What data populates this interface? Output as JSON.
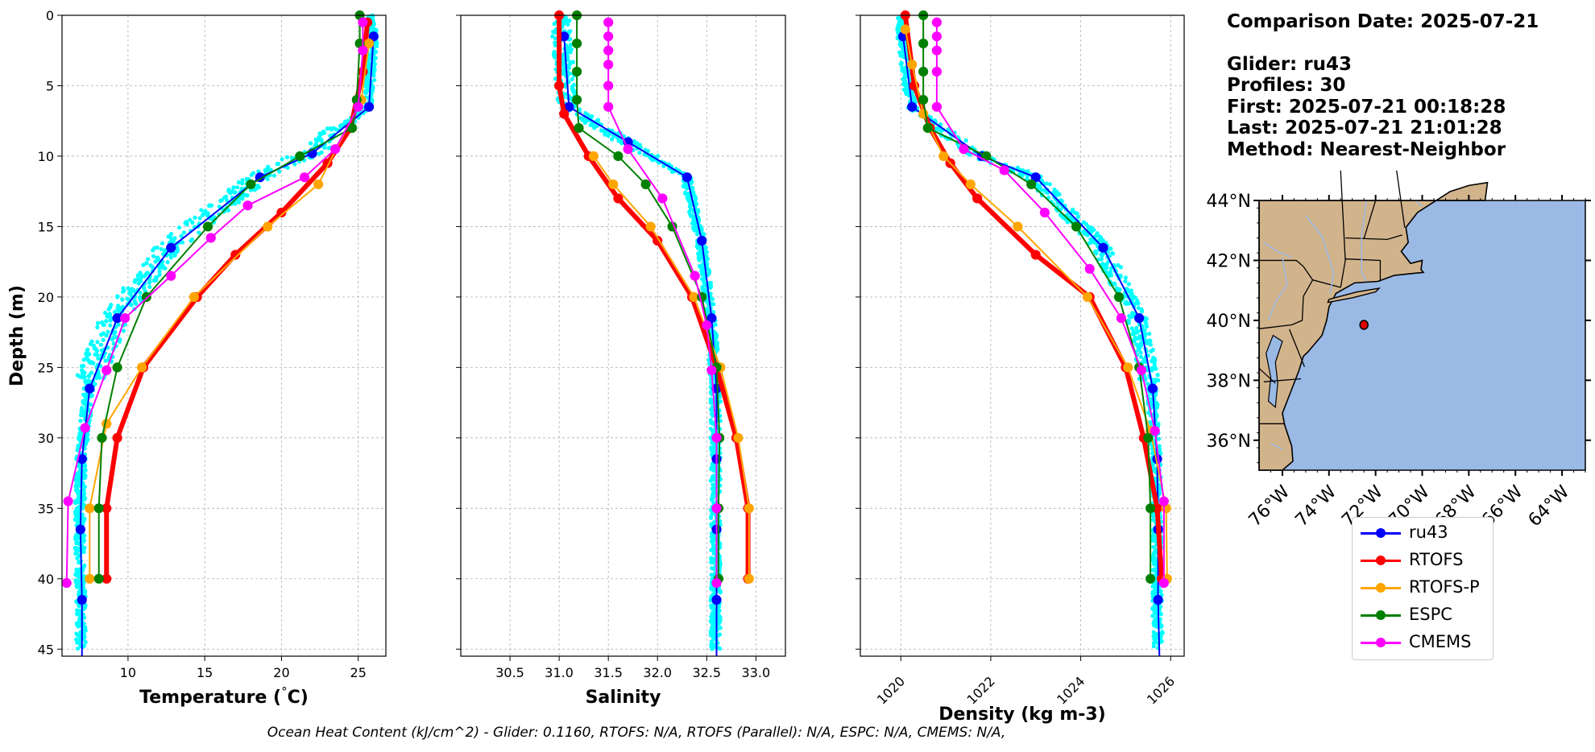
{
  "info": {
    "comparison_date": "Comparison Date: 2025-07-21",
    "glider": "Glider: ru43",
    "profiles": "Profiles: 30",
    "first": "First: 2025-07-21 00:18:28",
    "last": "Last: 2025-07-21 21:01:28",
    "method": "Method: Nearest-Neighbor"
  },
  "footer": "Ocean Heat Content (kJ/cm^2) - Glider: 0.1160,  RTOFS: N/A,  RTOFS (Parallel): N/A,  ESPC: N/A,  CMEMS: N/A,",
  "legend": [
    {
      "label": "ru43",
      "color": "#0000ff"
    },
    {
      "label": "RTOFS",
      "color": "#ff0000"
    },
    {
      "label": "RTOFS-P",
      "color": "#ffa500"
    },
    {
      "label": "ESPC",
      "color": "#008000"
    },
    {
      "label": "CMEMS",
      "color": "#ff00ff"
    }
  ],
  "map": {
    "lat_ticks": [
      "44°N",
      "42°N",
      "40°N",
      "38°N",
      "36°N"
    ],
    "lon_ticks": [
      "76°W",
      "74°W",
      "72°W",
      "70°W",
      "68°W",
      "66°W",
      "64°W"
    ],
    "land_color": "#d2b48c",
    "ocean_color": "#9ab9e5",
    "glider_position": [
      -72.5,
      39.85
    ]
  },
  "chart_data": [
    {
      "type": "line",
      "xlabel": "Temperature (°C)",
      "ylabel": "Depth (m)",
      "xlim": [
        5.7,
        26.8
      ],
      "ylim": [
        45.5,
        0
      ],
      "xticks": [
        10,
        15,
        20,
        25
      ],
      "yticks": [
        0,
        5,
        10,
        15,
        20,
        25,
        30,
        35,
        40,
        45
      ],
      "grid": true,
      "scatter_color": "#00ffff",
      "series": [
        {
          "name": "ru43",
          "color": "#0000ff",
          "width": 2,
          "marker": 7,
          "points": [
            [
              26,
              1.5
            ],
            [
              25.7,
              6.5
            ],
            [
              22,
              9.8
            ],
            [
              18.6,
              11.5
            ],
            [
              12.8,
              16.5
            ],
            [
              9.3,
              21.5
            ],
            [
              7.5,
              26.5
            ],
            [
              7,
              31.5
            ],
            [
              6.9,
              36.5
            ],
            [
              7,
              41.5
            ],
            [
              7,
              45.5
            ]
          ]
        },
        {
          "name": "RTOFS",
          "color": "#ff0000",
          "width": 6,
          "marker": 7,
          "points": [
            [
              25.6,
              0.5
            ],
            [
              25.3,
              4
            ],
            [
              24.5,
              8
            ],
            [
              23,
              10.5
            ],
            [
              20,
              14
            ],
            [
              17,
              17
            ],
            [
              14.5,
              20
            ],
            [
              11,
              25
            ],
            [
              9.3,
              30
            ],
            [
              8.6,
              35
            ],
            [
              8.6,
              40
            ]
          ]
        },
        {
          "name": "RTOFS-P",
          "color": "#ffa500",
          "width": 2,
          "marker": 7,
          "points": [
            [
              25.7,
              2
            ],
            [
              25.2,
              6
            ],
            [
              22.4,
              12
            ],
            [
              19.1,
              15
            ],
            [
              14.3,
              20
            ],
            [
              10.9,
              25
            ],
            [
              8.6,
              29
            ],
            [
              7.5,
              35
            ],
            [
              7.5,
              40
            ]
          ]
        },
        {
          "name": "ESPC",
          "color": "#008000",
          "width": 2,
          "marker": 7,
          "points": [
            [
              25.1,
              0
            ],
            [
              25.1,
              2
            ],
            [
              24.9,
              6
            ],
            [
              24.6,
              8
            ],
            [
              21.2,
              10
            ],
            [
              18,
              12
            ],
            [
              15.2,
              15
            ],
            [
              11.2,
              20
            ],
            [
              9.3,
              25
            ],
            [
              8.3,
              30
            ],
            [
              8.1,
              35
            ],
            [
              8.1,
              40
            ]
          ]
        },
        {
          "name": "CMEMS",
          "color": "#ff00ff",
          "width": 2,
          "marker": 7,
          "points": [
            [
              25.3,
              0.5
            ],
            [
              25.3,
              2.5
            ],
            [
              25,
              6.5
            ],
            [
              23.5,
              9.5
            ],
            [
              21.5,
              11.5
            ],
            [
              17.8,
              13.5
            ],
            [
              15.4,
              15.8
            ],
            [
              12.8,
              18.5
            ],
            [
              9.8,
              21.5
            ],
            [
              8.6,
              25.2
            ],
            [
              7.2,
              29.3
            ],
            [
              6.1,
              34.5
            ],
            [
              6,
              40.3
            ]
          ]
        }
      ]
    },
    {
      "type": "line",
      "xlabel": "Salinity",
      "ylabel": "",
      "xlim": [
        30.0,
        33.3
      ],
      "ylim": [
        45.5,
        0
      ],
      "xticks": [
        30.5,
        31.0,
        31.5,
        32.0,
        32.5,
        33.0
      ],
      "yticks": [
        0,
        5,
        10,
        15,
        20,
        25,
        30,
        35,
        40,
        45
      ],
      "grid": true,
      "scatter_color": "#00ffff",
      "series": [
        {
          "name": "ru43",
          "color": "#0000ff",
          "width": 2,
          "marker": 7,
          "points": [
            [
              31.05,
              1.5
            ],
            [
              31.1,
              6.5
            ],
            [
              31.7,
              9
            ],
            [
              32.3,
              11.5
            ],
            [
              32.45,
              16
            ],
            [
              32.55,
              21.5
            ],
            [
              32.6,
              26.5
            ],
            [
              32.6,
              31.5
            ],
            [
              32.6,
              36.5
            ],
            [
              32.6,
              41.5
            ],
            [
              32.6,
              45.5
            ]
          ]
        },
        {
          "name": "RTOFS",
          "color": "#ff0000",
          "width": 6,
          "marker": 7,
          "points": [
            [
              31.0,
              0
            ],
            [
              31.0,
              5
            ],
            [
              31.05,
              7
            ],
            [
              31.3,
              10
            ],
            [
              31.6,
              13
            ],
            [
              32.0,
              16
            ],
            [
              32.35,
              20
            ],
            [
              32.6,
              25
            ],
            [
              32.8,
              30
            ],
            [
              32.92,
              35
            ],
            [
              32.92,
              40
            ]
          ]
        },
        {
          "name": "RTOFS-P",
          "color": "#ffa500",
          "width": 2,
          "marker": 7,
          "points": [
            [
              31.35,
              10
            ],
            [
              31.55,
              12
            ],
            [
              31.93,
              15
            ],
            [
              32.37,
              20
            ],
            [
              32.64,
              25
            ],
            [
              32.82,
              30
            ],
            [
              32.93,
              35
            ],
            [
              32.93,
              40
            ]
          ]
        },
        {
          "name": "ESPC",
          "color": "#008000",
          "width": 2,
          "marker": 7,
          "points": [
            [
              31.18,
              0
            ],
            [
              31.18,
              2
            ],
            [
              31.18,
              4
            ],
            [
              31.18,
              6
            ],
            [
              31.2,
              8
            ],
            [
              31.6,
              10
            ],
            [
              31.88,
              12
            ],
            [
              32.15,
              15
            ],
            [
              32.45,
              20
            ],
            [
              32.6,
              25
            ],
            [
              32.63,
              30
            ],
            [
              32.62,
              35
            ],
            [
              32.62,
              40
            ]
          ]
        },
        {
          "name": "CMEMS",
          "color": "#ff00ff",
          "width": 2,
          "marker": 7,
          "points": [
            [
              31.5,
              0.5
            ],
            [
              31.5,
              1.5
            ],
            [
              31.5,
              2.5
            ],
            [
              31.5,
              3.5
            ],
            [
              31.5,
              5
            ],
            [
              31.5,
              6.5
            ],
            [
              31.7,
              9.5
            ],
            [
              32.05,
              13
            ],
            [
              32.38,
              18.5
            ],
            [
              32.5,
              22
            ],
            [
              32.55,
              25.2
            ],
            [
              32.6,
              30
            ],
            [
              32.6,
              35
            ],
            [
              32.6,
              40.3
            ]
          ]
        }
      ]
    },
    {
      "type": "line",
      "xlabel": "Density (kg m-3)",
      "ylabel": "",
      "xlim": [
        1019.1,
        1026.3
      ],
      "ylim": [
        45.5,
        0
      ],
      "xticks": [
        1020,
        1022,
        1024,
        1026
      ],
      "yticks": [
        0,
        5,
        10,
        15,
        20,
        25,
        30,
        35,
        40,
        45
      ],
      "grid": true,
      "scatter_color": "#00ffff",
      "series": [
        {
          "name": "ru43",
          "color": "#0000ff",
          "width": 2,
          "marker": 7,
          "points": [
            [
              1020.05,
              1.5
            ],
            [
              1020.25,
              6.5
            ],
            [
              1021.8,
              10
            ],
            [
              1023,
              11.5
            ],
            [
              1024.5,
              16.5
            ],
            [
              1025.3,
              21.5
            ],
            [
              1025.6,
              26.5
            ],
            [
              1025.7,
              31.5
            ],
            [
              1025.72,
              36.5
            ],
            [
              1025.72,
              41.5
            ],
            [
              1025.75,
              45.5
            ]
          ]
        },
        {
          "name": "RTOFS",
          "color": "#ff0000",
          "width": 6,
          "marker": 7,
          "points": [
            [
              1020.1,
              0
            ],
            [
              1020.3,
              5
            ],
            [
              1020.65,
              8
            ],
            [
              1021.1,
              10.5
            ],
            [
              1021.7,
              13
            ],
            [
              1023,
              17
            ],
            [
              1024.2,
              20
            ],
            [
              1025,
              25
            ],
            [
              1025.4,
              30
            ],
            [
              1025.7,
              35
            ],
            [
              1025.8,
              40
            ]
          ]
        },
        {
          "name": "RTOFS-P",
          "color": "#ffa500",
          "width": 2,
          "marker": 7,
          "points": [
            [
              1020.1,
              1
            ],
            [
              1020.25,
              3.5
            ],
            [
              1020.5,
              7
            ],
            [
              1020.95,
              10
            ],
            [
              1021.55,
              12
            ],
            [
              1022.6,
              15
            ],
            [
              1024.15,
              20
            ],
            [
              1025.05,
              25
            ],
            [
              1025.55,
              29.5
            ],
            [
              1025.9,
              35
            ],
            [
              1025.92,
              40
            ]
          ]
        },
        {
          "name": "ESPC",
          "color": "#008000",
          "width": 2,
          "marker": 7,
          "points": [
            [
              1020.5,
              0
            ],
            [
              1020.5,
              2
            ],
            [
              1020.5,
              4
            ],
            [
              1020.5,
              6
            ],
            [
              1020.6,
              8
            ],
            [
              1021.9,
              10
            ],
            [
              1022.9,
              12
            ],
            [
              1023.9,
              15
            ],
            [
              1024.85,
              20
            ],
            [
              1025.3,
              25
            ],
            [
              1025.5,
              30
            ],
            [
              1025.55,
              35
            ],
            [
              1025.55,
              40
            ]
          ]
        },
        {
          "name": "CMEMS",
          "color": "#ff00ff",
          "width": 2,
          "marker": 7,
          "points": [
            [
              1020.8,
              0.5
            ],
            [
              1020.8,
              1.5
            ],
            [
              1020.8,
              2.5
            ],
            [
              1020.8,
              4
            ],
            [
              1020.8,
              6.5
            ],
            [
              1021.4,
              9.5
            ],
            [
              1022.3,
              11
            ],
            [
              1023.2,
              14
            ],
            [
              1024.2,
              18
            ],
            [
              1024.9,
              21.5
            ],
            [
              1025.35,
              25.2
            ],
            [
              1025.65,
              29.5
            ],
            [
              1025.85,
              34.5
            ],
            [
              1025.85,
              40.3
            ]
          ]
        }
      ]
    }
  ]
}
